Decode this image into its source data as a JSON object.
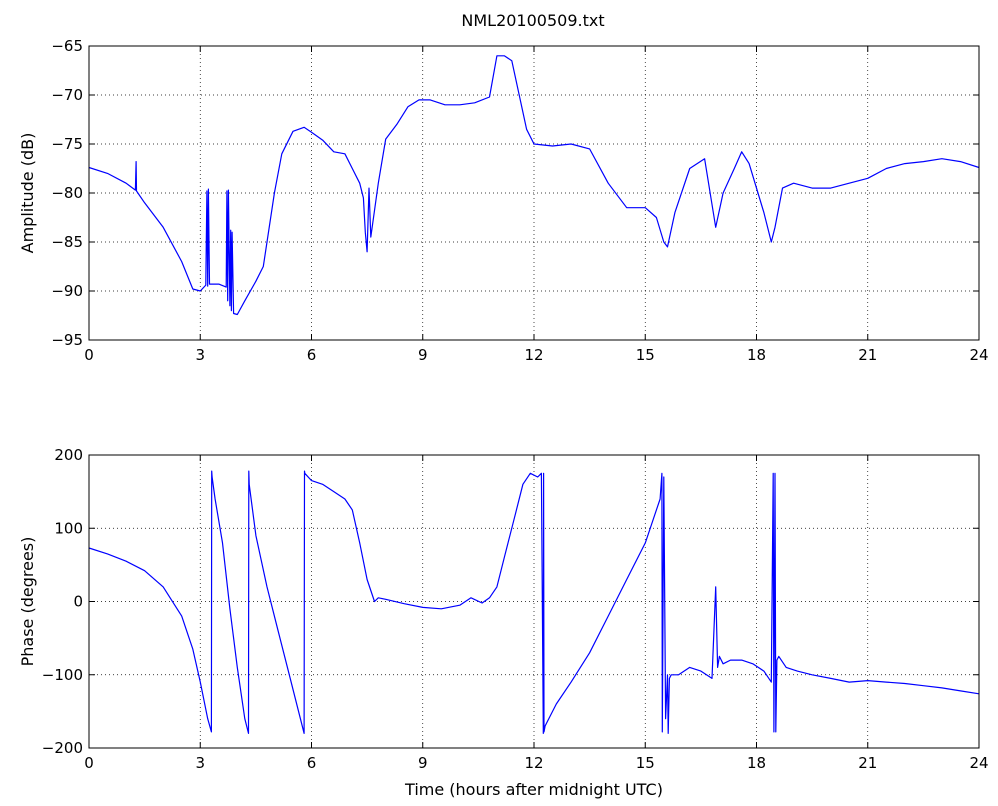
{
  "figure": {
    "title": "NML20100509.txt"
  },
  "chart_data": [
    {
      "type": "line",
      "title": "NML20100509.txt",
      "xlabel": "",
      "ylabel": "Amplitude (dB)",
      "xlim": [
        0,
        24
      ],
      "ylim": [
        -95,
        -65
      ],
      "xticks": [
        0,
        3,
        6,
        9,
        12,
        15,
        18,
        21,
        24
      ],
      "yticks": [
        -95,
        -90,
        -85,
        -80,
        -75,
        -70,
        -65
      ],
      "grid": true,
      "color": "#0000ff",
      "series": [
        {
          "x": [
            0,
            0.5,
            1.0,
            1.25,
            1.27,
            1.28,
            1.3,
            1.5,
            2.0,
            2.5,
            2.8,
            3.0,
            3.15,
            3.18,
            3.2,
            3.22,
            3.25,
            3.5,
            3.7,
            3.72,
            3.74,
            3.76,
            3.8,
            3.82,
            3.84,
            3.86,
            3.9,
            4.0,
            4.2,
            4.5,
            4.7,
            5.0,
            5.2,
            5.5,
            5.8,
            6.0,
            6.3,
            6.6,
            6.9,
            7.1,
            7.3,
            7.4,
            7.45,
            7.5,
            7.55,
            7.6,
            7.8,
            8.0,
            8.3,
            8.6,
            8.9,
            9.2,
            9.6,
            10.0,
            10.4,
            10.8,
            11.0,
            11.2,
            11.4,
            11.6,
            11.8,
            12.0,
            12.5,
            13.0,
            13.5,
            14.0,
            14.5,
            15.0,
            15.3,
            15.5,
            15.6,
            15.8,
            16.2,
            16.6,
            16.9,
            17.1,
            17.4,
            17.6,
            17.8,
            18.2,
            18.4,
            18.5,
            18.7,
            19.0,
            19.5,
            20.0,
            20.5,
            21.0,
            21.5,
            22.0,
            22.5,
            23.0,
            23.5,
            24.0
          ],
          "values": [
            -77.4,
            -78.0,
            -79.0,
            -79.7,
            -76.8,
            -79.8,
            -79.9,
            -81.0,
            -83.5,
            -87.0,
            -89.8,
            -90.0,
            -89.4,
            -79.8,
            -89.5,
            -79.6,
            -89.3,
            -89.3,
            -89.6,
            -79.8,
            -91.0,
            -79.7,
            -91.5,
            -83.8,
            -92.0,
            -84.0,
            -92.3,
            -92.4,
            -91.0,
            -89.0,
            -87.5,
            -80.0,
            -76.0,
            -73.7,
            -73.3,
            -73.8,
            -74.6,
            -75.8,
            -76.0,
            -77.5,
            -79.0,
            -80.5,
            -84.0,
            -86.0,
            -79.5,
            -84.5,
            -79.0,
            -74.5,
            -73.0,
            -71.2,
            -70.5,
            -70.5,
            -71.0,
            -71.0,
            -70.8,
            -70.2,
            -66.0,
            -66.0,
            -66.5,
            -70.0,
            -73.5,
            -75.0,
            -75.2,
            -75.0,
            -75.5,
            -79.0,
            -81.5,
            -81.5,
            -82.5,
            -85.0,
            -85.5,
            -82.0,
            -77.5,
            -76.5,
            -83.5,
            -80.0,
            -77.5,
            -75.8,
            -77.0,
            -82.0,
            -85.0,
            -83.5,
            -79.5,
            -79.0,
            -79.5,
            -79.5,
            -79.0,
            -78.5,
            -77.5,
            -77.0,
            -76.8,
            -76.5,
            -76.8,
            -77.4
          ]
        }
      ]
    },
    {
      "type": "line",
      "title": "",
      "xlabel": "Time (hours after midnight UTC)",
      "ylabel": "Phase (degrees)",
      "xlim": [
        0,
        24
      ],
      "ylim": [
        -200,
        200
      ],
      "xticks": [
        0,
        3,
        6,
        9,
        12,
        15,
        18,
        21,
        24
      ],
      "yticks": [
        -200,
        -100,
        0,
        100,
        200
      ],
      "grid": true,
      "color": "#0000ff",
      "series": [
        {
          "x": [
            0,
            0.5,
            1.0,
            1.5,
            2.0,
            2.5,
            2.8,
            3.0,
            3.2,
            3.3,
            3.31,
            3.32,
            3.4,
            3.6,
            3.8,
            4.0,
            4.2,
            4.3,
            4.31,
            4.32,
            4.5,
            4.8,
            5.1,
            5.4,
            5.7,
            5.8,
            5.81,
            5.82,
            6.0,
            6.3,
            6.6,
            6.9,
            7.1,
            7.3,
            7.5,
            7.7,
            7.8,
            8.0,
            8.5,
            9.0,
            9.5,
            10.0,
            10.3,
            10.6,
            10.8,
            11.0,
            11.2,
            11.5,
            11.7,
            11.9,
            12.1,
            12.2,
            12.25,
            12.26,
            12.27,
            12.3,
            12.6,
            13.0,
            13.5,
            14.0,
            14.5,
            15.0,
            15.2,
            15.4,
            15.45,
            15.46,
            15.5,
            15.55,
            15.6,
            15.62,
            15.65,
            15.7,
            15.9,
            16.2,
            16.5,
            16.8,
            16.9,
            16.95,
            17.0,
            17.1,
            17.3,
            17.6,
            17.9,
            18.2,
            18.4,
            18.45,
            18.47,
            18.5,
            18.52,
            18.55,
            18.6,
            18.8,
            19.1,
            19.5,
            20.0,
            20.5,
            21.0,
            21.5,
            22.0,
            22.5,
            23.0,
            23.5,
            24.0
          ],
          "values": [
            73,
            65,
            55,
            42,
            20,
            -20,
            -65,
            -110,
            -160,
            -178,
            178,
            170,
            140,
            80,
            -10,
            -90,
            -160,
            -180,
            178,
            160,
            90,
            20,
            -40,
            -100,
            -160,
            -180,
            178,
            175,
            165,
            160,
            150,
            140,
            125,
            80,
            30,
            0,
            5,
            3,
            -3,
            -8,
            -10,
            -5,
            5,
            -2,
            5,
            20,
            60,
            120,
            160,
            175,
            170,
            175,
            -180,
            175,
            -178,
            -170,
            -140,
            -110,
            -70,
            -20,
            30,
            80,
            110,
            140,
            175,
            -178,
            170,
            -160,
            -100,
            -180,
            -105,
            -100,
            -100,
            -90,
            -95,
            -105,
            20,
            -90,
            -75,
            -85,
            -80,
            -80,
            -85,
            -95,
            -110,
            175,
            -178,
            175,
            -178,
            -80,
            -75,
            -90,
            -95,
            -100,
            -105,
            -110,
            -108,
            -110,
            -112,
            -115,
            -118,
            -122,
            -126
          ]
        }
      ]
    }
  ]
}
